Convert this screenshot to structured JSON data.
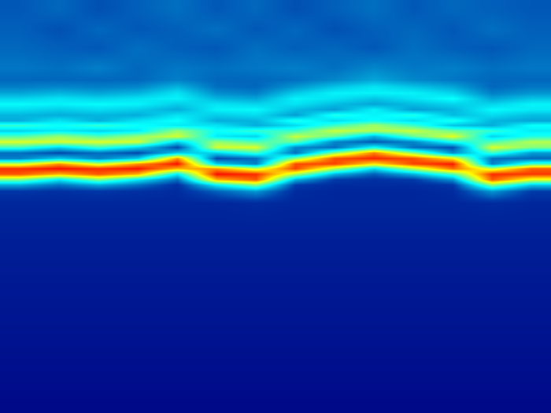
{
  "chart_data": {
    "type": "heatmap",
    "x": [
      25,
      75,
      125,
      175,
      225,
      275,
      325,
      375,
      425,
      475,
      525,
      575,
      625,
      675
    ],
    "y": [
      10,
      35,
      60,
      85,
      100,
      110,
      118,
      125,
      132,
      139,
      146,
      153,
      160,
      167,
      174,
      181,
      188,
      195,
      202,
      209,
      216,
      223,
      230,
      237,
      245,
      260,
      290,
      330,
      380,
      430,
      480,
      515
    ],
    "cells": [
      [
        0.16,
        0.18,
        0.15,
        0.17,
        0.19,
        0.16,
        0.18,
        0.15,
        0.17,
        0.19,
        0.16,
        0.18,
        0.17,
        0.16
      ],
      [
        0.17,
        0.15,
        0.18,
        0.16,
        0.17,
        0.19,
        0.16,
        0.18,
        0.15,
        0.17,
        0.18,
        0.16,
        0.19,
        0.17
      ],
      [
        0.18,
        0.17,
        0.16,
        0.19,
        0.17,
        0.16,
        0.19,
        0.17,
        0.18,
        0.16,
        0.19,
        0.17,
        0.16,
        0.18
      ],
      [
        0.2,
        0.19,
        0.21,
        0.18,
        0.2,
        0.19,
        0.2,
        0.21,
        0.19,
        0.22,
        0.2,
        0.21,
        0.19,
        0.2
      ],
      [
        0.18,
        0.18,
        0.18,
        0.18,
        0.21,
        0.18,
        0.18,
        0.19,
        0.22,
        0.26,
        0.22,
        0.2,
        0.18,
        0.18
      ],
      [
        0.21,
        0.22,
        0.21,
        0.22,
        0.28,
        0.19,
        0.18,
        0.24,
        0.3,
        0.34,
        0.3,
        0.26,
        0.18,
        0.2
      ],
      [
        0.26,
        0.28,
        0.26,
        0.28,
        0.34,
        0.23,
        0.21,
        0.31,
        0.36,
        0.36,
        0.36,
        0.32,
        0.21,
        0.24
      ],
      [
        0.32,
        0.34,
        0.32,
        0.34,
        0.36,
        0.28,
        0.26,
        0.36,
        0.34,
        0.3,
        0.34,
        0.38,
        0.26,
        0.3
      ],
      [
        0.37,
        0.36,
        0.37,
        0.36,
        0.31,
        0.34,
        0.32,
        0.34,
        0.29,
        0.26,
        0.29,
        0.32,
        0.32,
        0.36
      ],
      [
        0.33,
        0.31,
        0.33,
        0.31,
        0.27,
        0.36,
        0.37,
        0.29,
        0.25,
        0.36,
        0.25,
        0.28,
        0.37,
        0.35
      ],
      [
        0.28,
        0.27,
        0.28,
        0.27,
        0.34,
        0.31,
        0.33,
        0.25,
        0.4,
        0.36,
        0.4,
        0.29,
        0.33,
        0.29
      ],
      [
        0.27,
        0.34,
        0.27,
        0.34,
        0.38,
        0.27,
        0.28,
        0.4,
        0.33,
        0.38,
        0.33,
        0.4,
        0.28,
        0.26
      ],
      [
        0.42,
        0.38,
        0.42,
        0.38,
        0.35,
        0.34,
        0.27,
        0.33,
        0.43,
        0.53,
        0.43,
        0.3,
        0.27,
        0.38
      ],
      [
        0.32,
        0.35,
        0.32,
        0.35,
        0.52,
        0.38,
        0.42,
        0.43,
        0.57,
        0.54,
        0.57,
        0.48,
        0.42,
        0.35
      ],
      [
        0.45,
        0.52,
        0.45,
        0.52,
        0.58,
        0.35,
        0.32,
        0.57,
        0.47,
        0.28,
        0.47,
        0.6,
        0.32,
        0.4
      ],
      [
        0.59,
        0.58,
        0.59,
        0.58,
        0.32,
        0.52,
        0.45,
        0.47,
        0.22,
        0.16,
        0.22,
        0.39,
        0.45,
        0.55
      ],
      [
        0.43,
        0.32,
        0.43,
        0.32,
        0.14,
        0.58,
        0.59,
        0.22,
        0.19,
        0.38,
        0.19,
        0.15,
        0.59,
        0.5
      ],
      [
        0.19,
        0.14,
        0.19,
        0.14,
        0.31,
        0.32,
        0.43,
        0.19,
        0.51,
        0.75,
        0.51,
        0.23,
        0.43,
        0.25
      ],
      [
        0.21,
        0.31,
        0.21,
        0.31,
        0.73,
        0.14,
        0.19,
        0.51,
        0.8,
        0.84,
        0.8,
        0.64,
        0.19,
        0.18
      ],
      [
        0.57,
        0.73,
        0.57,
        0.73,
        0.86,
        0.31,
        0.21,
        0.8,
        0.81,
        0.65,
        0.81,
        0.85,
        0.21,
        0.44
      ],
      [
        0.83,
        0.86,
        0.83,
        0.86,
        0.7,
        0.73,
        0.57,
        0.81,
        0.55,
        0.33,
        0.55,
        0.77,
        0.57,
        0.78
      ],
      [
        0.79,
        0.7,
        0.79,
        0.7,
        0.35,
        0.86,
        0.83,
        0.55,
        0.28,
        0.17,
        0.28,
        0.45,
        0.83,
        0.82
      ],
      [
        0.5,
        0.35,
        0.5,
        0.35,
        0.19,
        0.7,
        0.79,
        0.28,
        0.12,
        0.1,
        0.12,
        0.24,
        0.79,
        0.6
      ],
      [
        0.26,
        0.19,
        0.26,
        0.19,
        0.1,
        0.35,
        0.5,
        0.12,
        0.09,
        0.09,
        0.09,
        0.11,
        0.5,
        0.3
      ],
      [
        0.11,
        0.1,
        0.11,
        0.1,
        0.09,
        0.17,
        0.24,
        0.09,
        0.08,
        0.08,
        0.08,
        0.09,
        0.24,
        0.12
      ],
      [
        0.08,
        0.08,
        0.08,
        0.08,
        0.08,
        0.08,
        0.09,
        0.08,
        0.08,
        0.08,
        0.08,
        0.08,
        0.09,
        0.08
      ],
      [
        0.07,
        0.07,
        0.07,
        0.07,
        0.07,
        0.07,
        0.07,
        0.07,
        0.07,
        0.07,
        0.07,
        0.07,
        0.07,
        0.07
      ],
      [
        0.06,
        0.06,
        0.06,
        0.06,
        0.06,
        0.06,
        0.06,
        0.06,
        0.06,
        0.06,
        0.06,
        0.06,
        0.06,
        0.06
      ],
      [
        0.05,
        0.05,
        0.05,
        0.05,
        0.05,
        0.05,
        0.05,
        0.05,
        0.05,
        0.05,
        0.05,
        0.05,
        0.05,
        0.05
      ],
      [
        0.04,
        0.04,
        0.04,
        0.04,
        0.04,
        0.04,
        0.04,
        0.04,
        0.04,
        0.04,
        0.04,
        0.04,
        0.04,
        0.04
      ],
      [
        0.03,
        0.03,
        0.03,
        0.03,
        0.03,
        0.03,
        0.03,
        0.03,
        0.03,
        0.03,
        0.03,
        0.03,
        0.03,
        0.03
      ],
      [
        0.02,
        0.02,
        0.02,
        0.02,
        0.02,
        0.02,
        0.02,
        0.02,
        0.02,
        0.02,
        0.02,
        0.02,
        0.02,
        0.02
      ]
    ],
    "zlim": [
      0,
      1
    ],
    "tick_labels": false
  }
}
